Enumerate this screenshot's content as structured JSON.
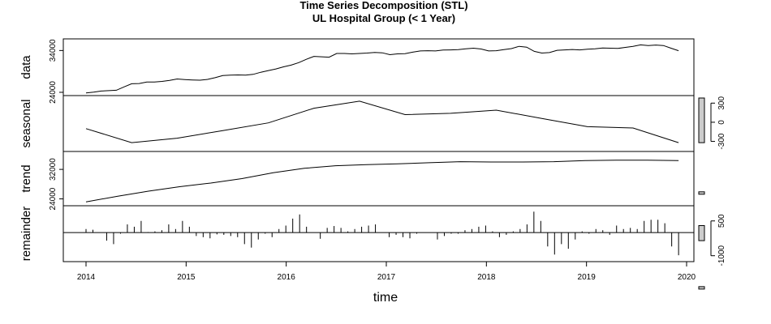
{
  "chart_data": {
    "type": "line",
    "title": "Time Series Decomposition (STL)",
    "subtitle": "UL Hospital Group (< 1 Year)",
    "xlabel": "time",
    "xlim": [
      2014.0,
      2020.0
    ],
    "x_ticks": [
      "2014",
      "2015",
      "2016",
      "2017",
      "2018",
      "2019",
      "2020"
    ],
    "x_start": 2014.0,
    "x_step": 0.0833,
    "panels": [
      {
        "name": "data",
        "ylim": [
          23800,
          36200
        ],
        "y_ticks": [
          "24000",
          "34000"
        ],
        "y_tick_values": [
          24000,
          34000
        ],
        "tick_side": "left",
        "scale_bar": [
          -200,
          200
        ],
        "values": [
          23850,
          24050,
          24300,
          24400,
          24500,
          25300,
          26050,
          26100,
          26450,
          26450,
          26600,
          26850,
          27200,
          27050,
          26950,
          26900,
          27100,
          27500,
          28000,
          28100,
          28150,
          28100,
          28300,
          28800,
          29200,
          29600,
          30100,
          30500,
          31100,
          31900,
          32600,
          32500,
          32400,
          33300,
          33300,
          33200,
          33300,
          33400,
          33550,
          33450,
          33000,
          33200,
          33250,
          33600,
          33900,
          33950,
          33900,
          34100,
          34150,
          34200,
          34400,
          34550,
          34350,
          33900,
          33950,
          34200,
          34450,
          35000,
          34800,
          33800,
          33400,
          33500,
          34050,
          34150,
          34250,
          34150,
          34300,
          34400,
          34600,
          34550,
          34500,
          34750,
          35000,
          35350,
          35200,
          35300,
          35200,
          34550,
          33950
        ]
      },
      {
        "name": "seasonal",
        "ylim": [
          -420,
          380
        ],
        "y_ticks": [
          "-300",
          "0",
          "300"
        ],
        "y_tick_values": [
          -300,
          0,
          300
        ],
        "tick_side": "right",
        "scale_bar": [
          -320,
          380
        ],
        "values": [
          -100,
          -320,
          -250,
          -130,
          -10,
          220,
          330,
          120,
          140,
          190,
          60,
          -70,
          -90,
          -320
        ]
      },
      {
        "name": "trend",
        "ylim": [
          22800,
          36200
        ],
        "y_ticks": [
          "24000",
          "32000"
        ],
        "y_tick_values": [
          24000,
          32000
        ],
        "tick_side": "left",
        "scale_bar": [
          -200,
          200
        ],
        "values": [
          23200,
          24700,
          26100,
          27300,
          28300,
          29500,
          31100,
          32300,
          33000,
          33300,
          33500,
          33800,
          34100,
          34000,
          34000,
          34100,
          34400,
          34500,
          34500,
          34400
        ]
      },
      {
        "name": "remainder",
        "ylim": [
          -1150,
          1050
        ],
        "y_ticks": [
          "-1000",
          "500"
        ],
        "y_tick_values": [
          -1000,
          500
        ],
        "tick_side": "right",
        "scale_bar": [
          -350,
          300
        ],
        "values": [
          150,
          120,
          0,
          -350,
          -500,
          -50,
          350,
          250,
          500,
          20,
          50,
          100,
          350,
          150,
          500,
          250,
          -150,
          -200,
          -250,
          -80,
          -100,
          -150,
          -200,
          -500,
          -650,
          -300,
          -50,
          -200,
          150,
          300,
          600,
          780,
          250,
          0,
          -270,
          200,
          280,
          200,
          50,
          150,
          250,
          300,
          350,
          0,
          -200,
          -100,
          -200,
          -250,
          -50,
          0,
          0,
          -300,
          -150,
          -50,
          -50,
          100,
          150,
          250,
          300,
          50,
          -200,
          -100,
          50,
          150,
          350,
          900,
          500,
          -600,
          -950,
          -500,
          -700,
          -300,
          50,
          -50,
          150,
          100,
          -100,
          300,
          150,
          200,
          150,
          500,
          550,
          550,
          400,
          -600,
          -980
        ]
      }
    ]
  }
}
